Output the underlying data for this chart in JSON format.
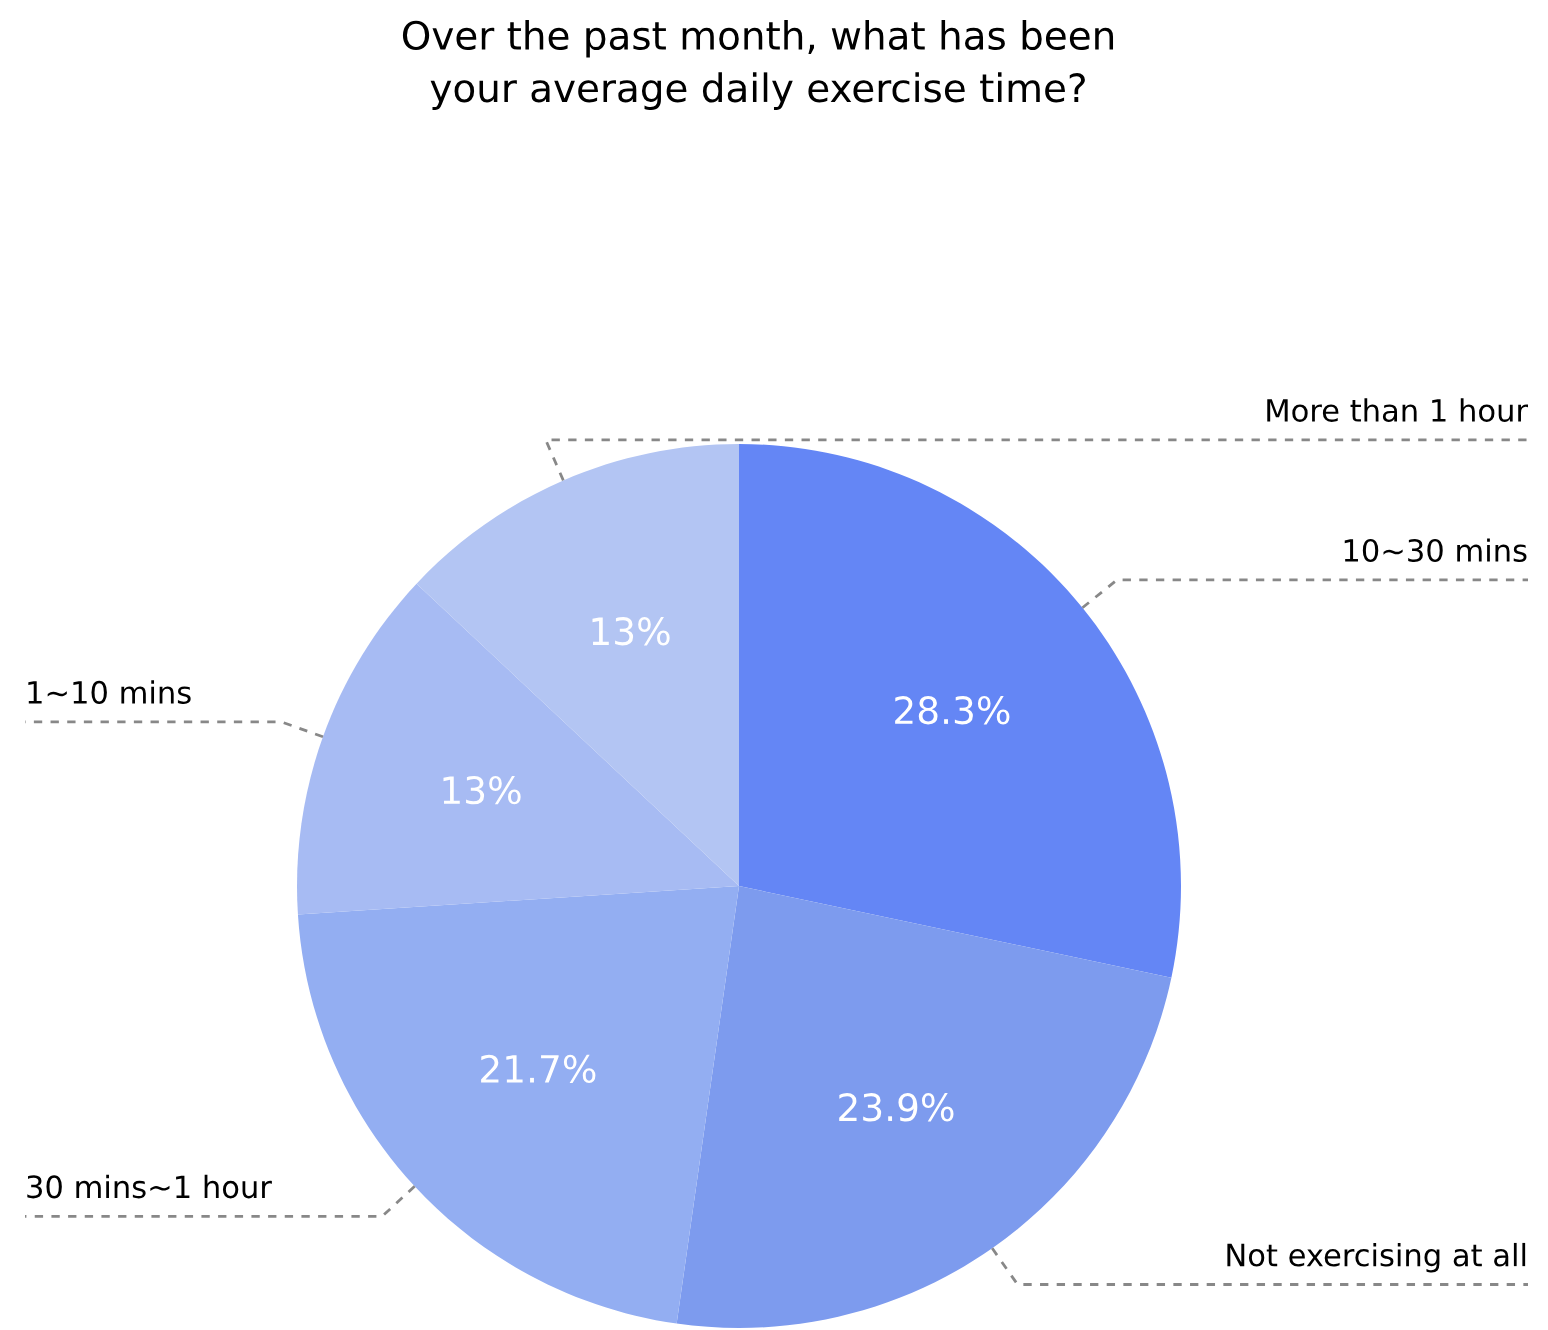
{
  "chart_data": {
    "type": "pie",
    "title": "Over the past month, what has been\nyour average daily exercise time?",
    "categories": [
      "10~30 mins",
      "Not exercising at all",
      "30 mins~1 hour",
      "1~10 mins",
      "More than 1 hour"
    ],
    "values": [
      28.3,
      23.9,
      21.7,
      13,
      13
    ],
    "value_labels": [
      "28.3%",
      "23.9%",
      "21.7%",
      "13%",
      "13%"
    ],
    "colors": [
      "#6486f5",
      "#7d9bee",
      "#93aef2",
      "#a7bbf3",
      "#b3c5f3"
    ]
  }
}
